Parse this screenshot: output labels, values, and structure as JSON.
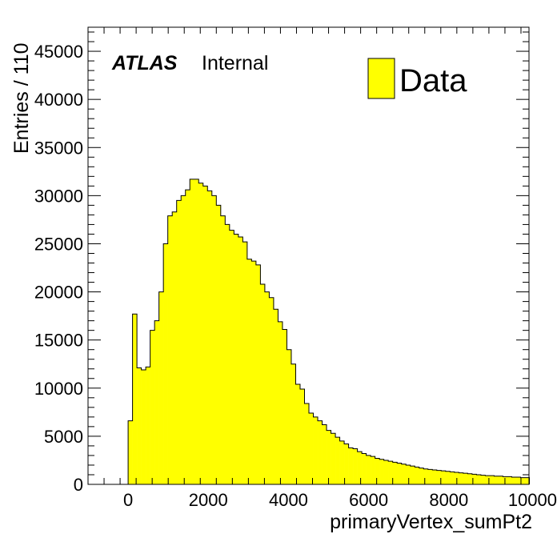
{
  "chart_data": {
    "type": "bar",
    "title": "",
    "xlabel": "primaryVertex_sumPt2",
    "ylabel": "Entries / 110",
    "xlim": [
      -1000,
      10000
    ],
    "ylim": [
      0,
      47500
    ],
    "x_ticks": [
      "0",
      "2000",
      "4000",
      "6000",
      "8000",
      "10000"
    ],
    "y_ticks": [
      "0",
      "5000",
      "10000",
      "15000",
      "20000",
      "25000",
      "30000",
      "35000",
      "40000",
      "45000"
    ],
    "bin_width": 110,
    "bin_start": 0,
    "series": [
      {
        "name": "Data",
        "color": "#ffff00",
        "values": [
          6600,
          17700,
          12100,
          11900,
          12200,
          16000,
          17000,
          20000,
          25000,
          27900,
          28300,
          29500,
          30000,
          30600,
          31700,
          31700,
          31300,
          31000,
          30500,
          30000,
          29000,
          27900,
          27000,
          26400,
          26000,
          25700,
          25200,
          23400,
          23200,
          22800,
          20800,
          20000,
          19400,
          18200,
          16900,
          16100,
          14000,
          12500,
          10400,
          9900,
          8400,
          7400,
          7000,
          6600,
          6200,
          5600,
          5300,
          4900,
          4500,
          4200,
          3800,
          3700,
          3400,
          3200,
          3000,
          2900,
          2700,
          2600,
          2500,
          2400,
          2300,
          2200,
          2100,
          2000,
          1900,
          1800,
          1700,
          1600,
          1550,
          1500,
          1450,
          1400,
          1350,
          1300,
          1250,
          1200,
          1150,
          1100,
          1050,
          1000,
          950,
          900,
          900,
          850,
          850,
          800,
          800,
          750,
          750,
          700,
          700
        ]
      }
    ]
  },
  "annotation": {
    "experiment": "ATLAS",
    "status": "Internal"
  },
  "legend": {
    "entries": [
      {
        "label": "Data",
        "color": "#ffff00"
      }
    ],
    "position": "top-right"
  }
}
